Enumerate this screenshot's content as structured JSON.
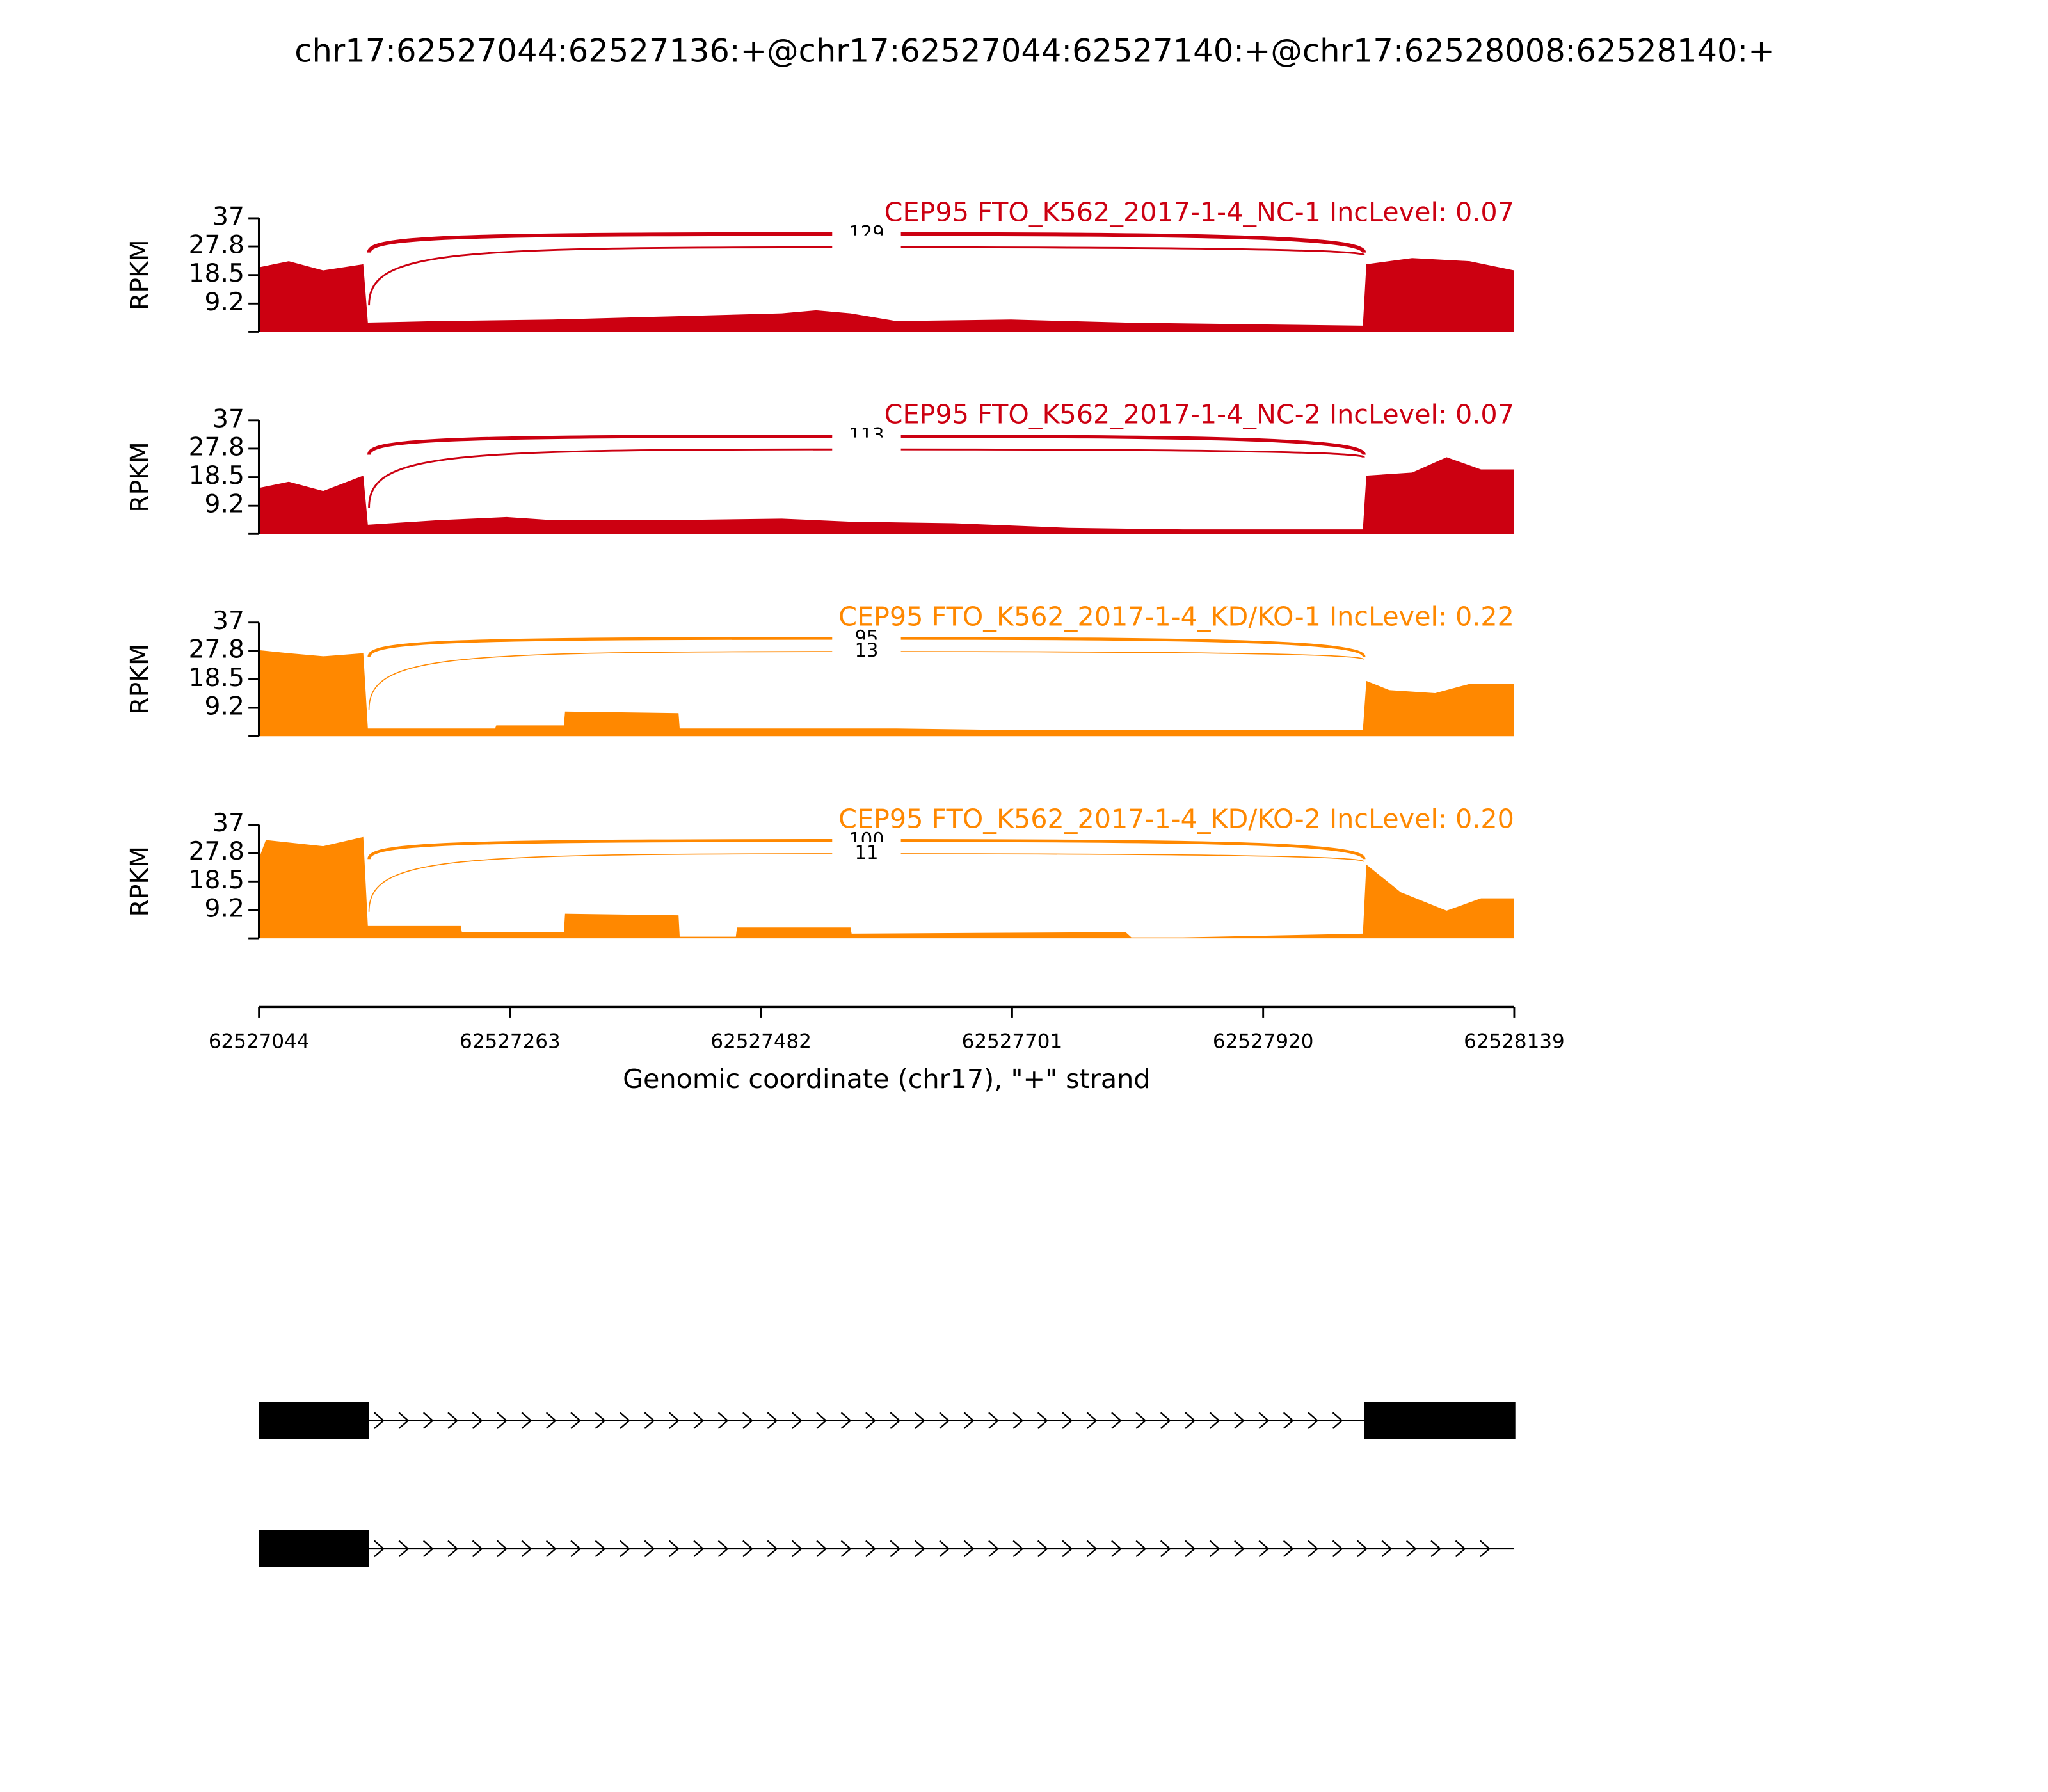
{
  "title": "chr17:62527044:62527136:+@chr17:62527044:62527140:+@chr17:62528008:62528140:+",
  "xlim": [
    62527044,
    62528139
  ],
  "xticks": [
    62527044,
    62527263,
    62527482,
    62527701,
    62527920,
    62528139
  ],
  "xlabel": "Genomic coordinate (chr17), \"+\" strand",
  "chart_data": [
    {
      "type": "area",
      "title": "CEP95 FTO_K562_2017-1-4_NC-1 IncLevel: 0.07",
      "color": "#cc0011",
      "ylabel": "RPKM",
      "ylim": [
        0,
        37
      ],
      "yticks": [
        9.2,
        18.5,
        27.8,
        37
      ],
      "x": [
        62527044,
        62527070,
        62527100,
        62527135,
        62527139,
        62527200,
        62527300,
        62527400,
        62527500,
        62527530,
        62527560,
        62527600,
        62527700,
        62527800,
        62527900,
        62528007,
        62528010,
        62528050,
        62528100,
        62528139
      ],
      "values": [
        21,
        23,
        20,
        22,
        3,
        3.5,
        4,
        5,
        6,
        7,
        6,
        3.5,
        4,
        3,
        2.5,
        2,
        22,
        24,
        23,
        20
      ],
      "junctions": [
        {
          "start": 62527140,
          "end": 62528008,
          "count": 129
        },
        {
          "start": 62527140,
          "end": 62528008,
          "count": null
        }
      ]
    },
    {
      "type": "area",
      "title": "CEP95 FTO_K562_2017-1-4_NC-2 IncLevel: 0.07",
      "color": "#cc0011",
      "ylabel": "RPKM",
      "ylim": [
        0,
        37
      ],
      "yticks": [
        9.2,
        18.5,
        27.8,
        37
      ],
      "x": [
        62527044,
        62527070,
        62527100,
        62527135,
        62527139,
        62527200,
        62527260,
        62527300,
        62527400,
        62527500,
        62527560,
        62527650,
        62527750,
        62527850,
        62527950,
        62528007,
        62528010,
        62528050,
        62528080,
        62528110,
        62528139
      ],
      "values": [
        15,
        17,
        14,
        19,
        3,
        4.5,
        5.5,
        4.5,
        4.5,
        5,
        4,
        3.5,
        2,
        1.5,
        1.5,
        1.5,
        19,
        20,
        25,
        21,
        21
      ],
      "junctions": [
        {
          "start": 62527140,
          "end": 62528008,
          "count": 113
        },
        {
          "start": 62527140,
          "end": 62528008,
          "count": null
        }
      ]
    },
    {
      "type": "area",
      "title": "CEP95 FTO_K562_2017-1-4_KD/KO-1 IncLevel: 0.22",
      "color": "#ff8800",
      "ylabel": "RPKM",
      "ylim": [
        0,
        37
      ],
      "yticks": [
        9.2,
        18.5,
        27.8,
        37
      ],
      "x": [
        62527044,
        62527070,
        62527100,
        62527135,
        62527139,
        62527250,
        62527251,
        62527310,
        62527311,
        62527410,
        62527411,
        62527600,
        62527700,
        62528007,
        62528010,
        62528030,
        62528070,
        62528100,
        62528139
      ],
      "values": [
        28,
        27,
        26,
        27,
        2.5,
        2.5,
        3.5,
        3.5,
        8,
        7.5,
        2.5,
        2.5,
        2,
        2,
        18,
        15,
        14,
        17,
        17
      ],
      "junctions": [
        {
          "start": 62527140,
          "end": 62528008,
          "count": 95
        },
        {
          "start": 62527140,
          "end": 62528008,
          "count": 13
        }
      ]
    },
    {
      "type": "area",
      "title": "CEP95 FTO_K562_2017-1-4_KD/KO-2 IncLevel: 0.20",
      "color": "#ff8800",
      "ylabel": "RPKM",
      "ylim": [
        0,
        37
      ],
      "yticks": [
        9.2,
        18.5,
        27.8,
        37
      ],
      "x": [
        62527044,
        62527050,
        62527100,
        62527135,
        62527139,
        62527220,
        62527221,
        62527310,
        62527311,
        62527410,
        62527411,
        62527460,
        62527461,
        62527560,
        62527561,
        62527800,
        62527805,
        62527850,
        62528007,
        62528010,
        62528040,
        62528080,
        62528110,
        62528139
      ],
      "values": [
        26,
        32,
        30,
        33,
        4,
        4,
        2,
        2,
        8,
        7.5,
        0.5,
        0.5,
        3.5,
        3.5,
        1.5,
        2,
        0.3,
        0.3,
        1.5,
        24,
        15,
        9,
        13,
        13
      ],
      "junctions": [
        {
          "start": 62527140,
          "end": 62528008,
          "count": 100
        },
        {
          "start": 62527140,
          "end": 62528008,
          "count": 11
        }
      ]
    }
  ],
  "transcripts": [
    {
      "span": [
        62527044,
        62528139
      ],
      "exons": [
        [
          62527044,
          62527140
        ],
        [
          62528008,
          62528140
        ]
      ]
    },
    {
      "span": [
        62527044,
        62528139
      ],
      "exons": [
        [
          62527044,
          62527140
        ]
      ]
    }
  ]
}
